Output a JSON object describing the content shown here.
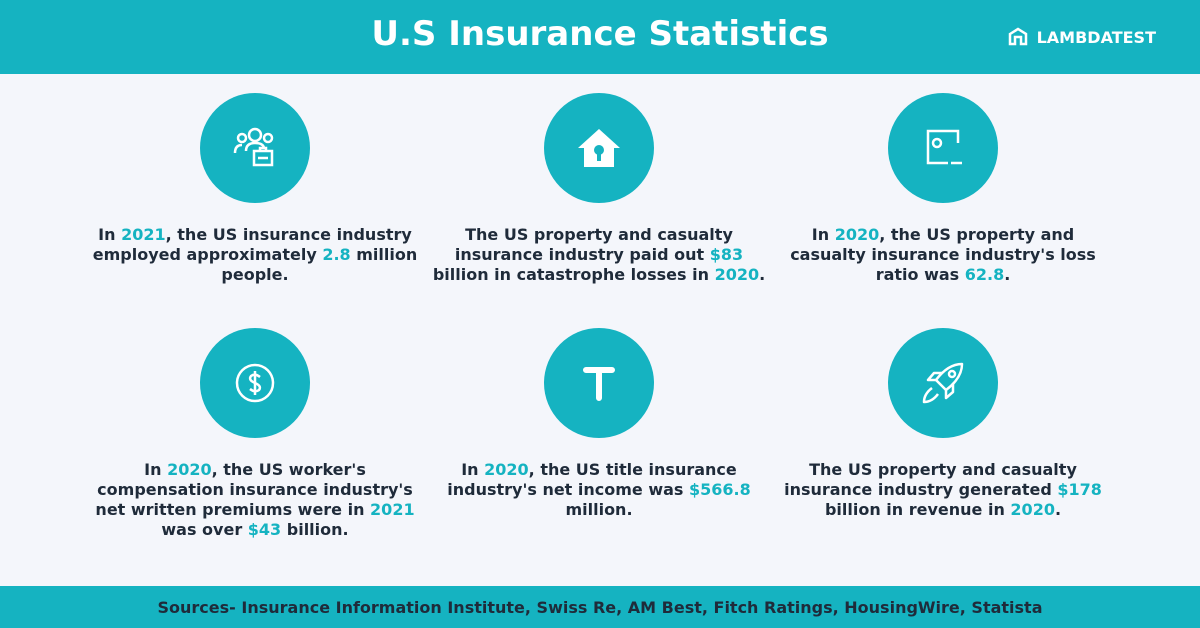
{
  "header": {
    "title": "U.S Insurance Statistics",
    "logo": "LAMBDATEST"
  },
  "highlight_color": "#15b3c1",
  "cards": [
    {
      "parts": [
        {
          "text": "In ",
          "highlight": false
        },
        {
          "text": "2021",
          "highlight": true
        },
        {
          "text": ", the US insurance industry employed approximately ",
          "highlight": false
        },
        {
          "text": "2.8",
          "highlight": true
        },
        {
          "text": " million people.",
          "highlight": false
        }
      ]
    },
    {
      "parts": [
        {
          "text": "The US property and casualty insurance industry paid out ",
          "highlight": false
        },
        {
          "text": "$83",
          "highlight": true
        },
        {
          "text": " billion in catastrophe losses in ",
          "highlight": false
        },
        {
          "text": "2020",
          "highlight": true
        },
        {
          "text": ".",
          "highlight": false
        }
      ]
    },
    {
      "parts": [
        {
          "text": "In ",
          "highlight": false
        },
        {
          "text": "2020",
          "highlight": true
        },
        {
          "text": ", the US property and casualty insurance industry's loss ratio was ",
          "highlight": false
        },
        {
          "text": "62.8",
          "highlight": true
        },
        {
          "text": ".",
          "highlight": false
        }
      ]
    },
    {
      "parts": [
        {
          "text": "In ",
          "highlight": false
        },
        {
          "text": "2020",
          "highlight": true
        },
        {
          "text": ", the US worker's compensation insurance industry's net written premiums were in ",
          "highlight": false
        },
        {
          "text": "2021",
          "highlight": true
        },
        {
          "text": " was over ",
          "highlight": false
        },
        {
          "text": "$43",
          "highlight": true
        },
        {
          "text": " billion.",
          "highlight": false
        }
      ]
    },
    {
      "parts": [
        {
          "text": "In ",
          "highlight": false
        },
        {
          "text": "2020",
          "highlight": true
        },
        {
          "text": ", the US title insurance industry's net income was ",
          "highlight": false
        },
        {
          "text": "$566.8",
          "highlight": true
        },
        {
          "text": " million.",
          "highlight": false
        }
      ]
    },
    {
      "parts": [
        {
          "text": "The US property and casualty insurance industry generated ",
          "highlight": false
        },
        {
          "text": "$178",
          "highlight": true
        },
        {
          "text": " billion in revenue in ",
          "highlight": false
        },
        {
          "text": "2020",
          "highlight": true
        },
        {
          "text": ".",
          "highlight": false
        }
      ]
    }
  ],
  "footer": {
    "sources": "Sources- Insurance Information Institute, Swiss Re, AM Best, Fitch Ratings, HousingWire, Statista"
  }
}
